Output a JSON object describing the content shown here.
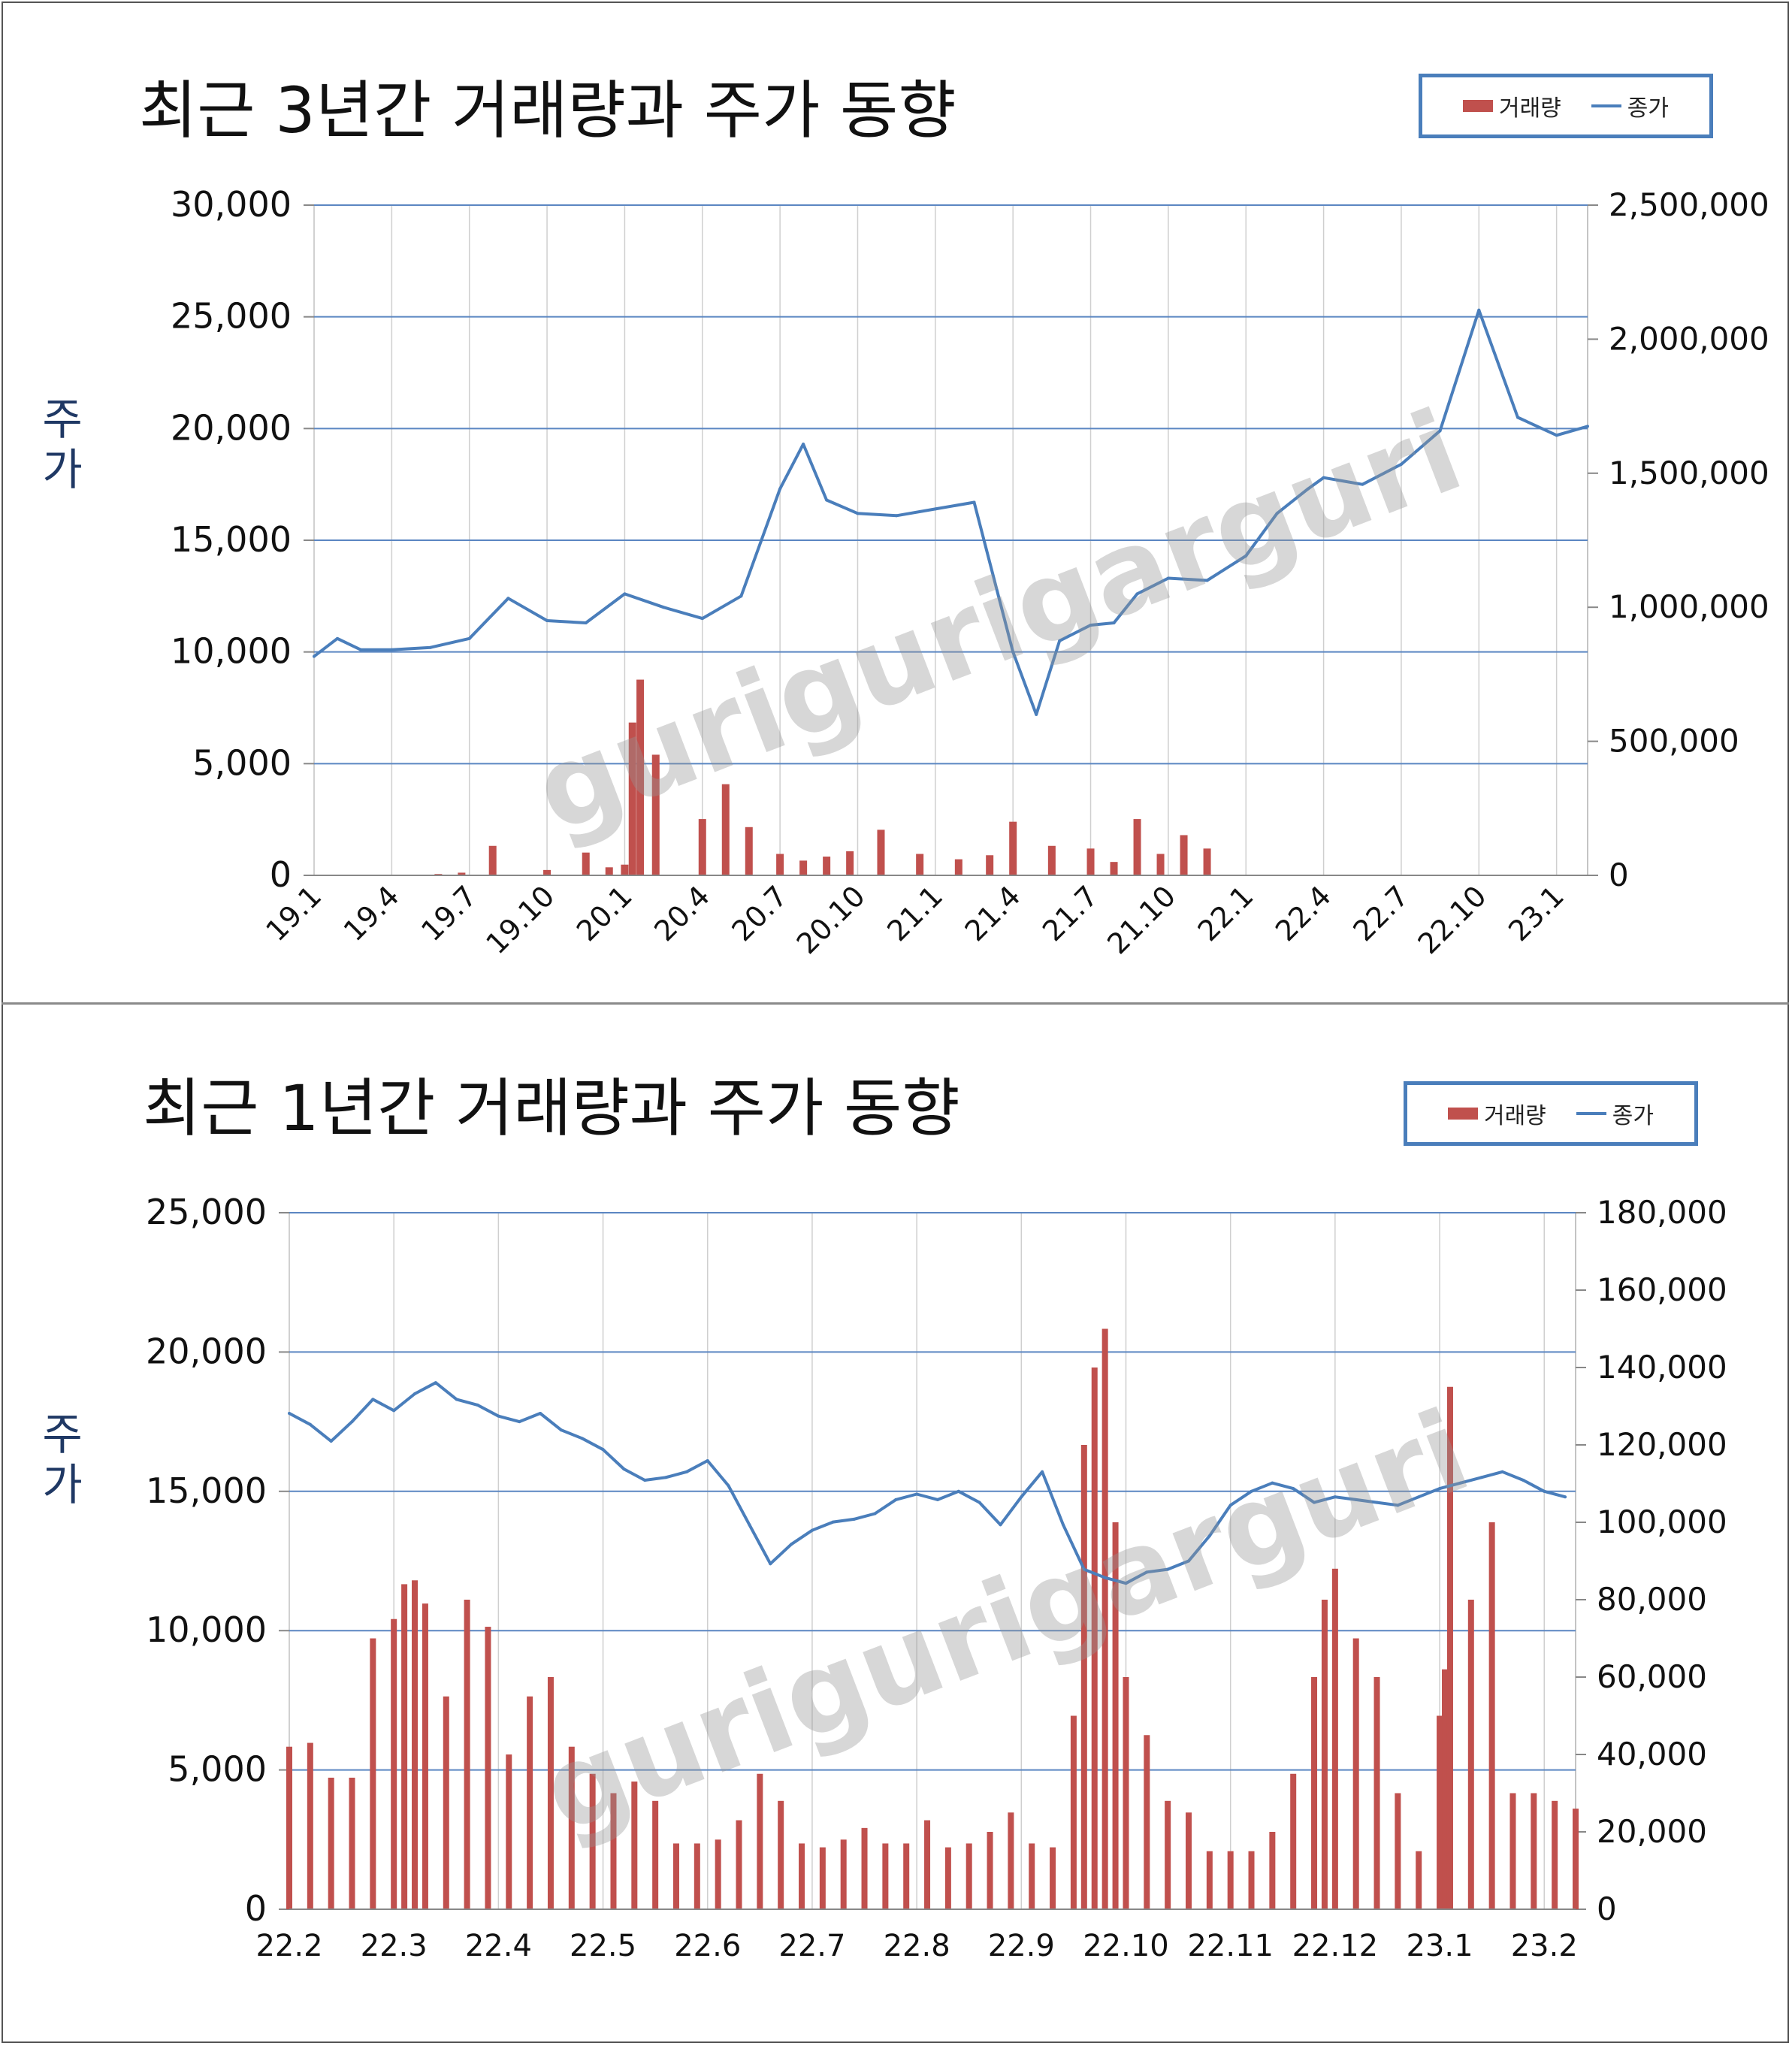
{
  "watermark": "gurigurigarguri",
  "chart_data": [
    {
      "type": "bar+line",
      "title": "최근 3년간 거래량과 주가 동향",
      "ylabel": "주가",
      "legend": [
        "거래량",
        "종가"
      ],
      "legend_position": "top-right",
      "grid": true,
      "colors": {
        "volume": "#c0504d",
        "price": "#4a7ebb"
      },
      "categories": [
        "19.1",
        "19.4",
        "19.7",
        "19.10",
        "20.1",
        "20.4",
        "20.7",
        "20.10",
        "21.1",
        "21.4",
        "21.7",
        "21.10",
        "22.1",
        "22.4",
        "22.7",
        "22.10",
        "23.1"
      ],
      "y_left": {
        "min": 0,
        "max": 30000,
        "ticks": [
          "0",
          "5,000",
          "10,000",
          "15,000",
          "20,000",
          "25,000",
          "30,000"
        ]
      },
      "y_right": {
        "min": 0,
        "max": 2500000,
        "ticks": [
          "0",
          "500,000",
          "1,000,000",
          "1,500,000",
          "2,000,000",
          "2,500,000"
        ]
      },
      "series": [
        {
          "name": "종가",
          "axis": "left",
          "kind": "line",
          "x": [
            0,
            0.3,
            0.6,
            1.0,
            1.5,
            2.0,
            2.5,
            3.0,
            3.5,
            4.0,
            4.5,
            5.0,
            5.5,
            6.0,
            6.3,
            6.6,
            7.0,
            7.5,
            8.0,
            8.5,
            9.0,
            9.3,
            9.6,
            10.0,
            10.3,
            10.6,
            11.0,
            11.5,
            12.0,
            12.4,
            12.8,
            13.0,
            13.5,
            14.0,
            14.5,
            15.0,
            15.5,
            16.0,
            16.4
          ],
          "values": [
            9800,
            10600,
            10100,
            10100,
            10200,
            10600,
            12400,
            11400,
            11300,
            12600,
            12000,
            11500,
            12500,
            17300,
            19300,
            16800,
            16200,
            16100,
            16400,
            16700,
            10000,
            7200,
            10500,
            11200,
            11300,
            12600,
            13300,
            13200,
            14300,
            16200,
            17300,
            17800,
            17500,
            18400,
            19900,
            25300,
            20500,
            19700,
            20100
          ]
        },
        {
          "name": "거래량",
          "axis": "right",
          "kind": "bar",
          "x": [
            0,
            1.0,
            1.6,
            1.9,
            2.3,
            3.0,
            3.5,
            3.8,
            4.0,
            4.1,
            4.2,
            4.4,
            5.0,
            5.3,
            5.6,
            6.0,
            6.3,
            6.6,
            6.9,
            7.3,
            7.8,
            8.3,
            8.7,
            9.0,
            9.5,
            10.0,
            10.3,
            10.6,
            10.9,
            11.2,
            11.5
          ],
          "values": [
            0,
            0,
            5000,
            10000,
            110000,
            20000,
            85000,
            30000,
            40000,
            570000,
            730000,
            450000,
            210000,
            340000,
            180000,
            80000,
            55000,
            70000,
            90000,
            170000,
            80000,
            60000,
            75000,
            200000,
            110000,
            100000,
            50000,
            210000,
            80000,
            150000,
            100000
          ]
        }
      ]
    },
    {
      "type": "bar+line",
      "title": "최근 1년간 거래량과 주가 동향",
      "ylabel": "주가",
      "legend": [
        "거래량",
        "종가"
      ],
      "legend_position": "top-right",
      "grid": true,
      "colors": {
        "volume": "#c0504d",
        "price": "#4a7ebb"
      },
      "categories": [
        "22.2",
        "22.3",
        "22.4",
        "22.5",
        "22.6",
        "22.7",
        "22.8",
        "22.9",
        "22.10",
        "22.11",
        "22.12",
        "23.1",
        "23.2"
      ],
      "y_left": {
        "min": 0,
        "max": 25000,
        "ticks": [
          "0",
          "5,000",
          "10,000",
          "15,000",
          "20,000",
          "25,000"
        ]
      },
      "y_right": {
        "min": 0,
        "max": 180000,
        "ticks": [
          "0",
          "20,000",
          "40,000",
          "60,000",
          "80,000",
          "100,000",
          "120,000",
          "140,000",
          "160,000",
          "180,000"
        ]
      },
      "series": [
        {
          "name": "종가",
          "axis": "left",
          "kind": "line",
          "x": [
            0,
            0.2,
            0.4,
            0.6,
            0.8,
            1.0,
            1.2,
            1.4,
            1.6,
            1.8,
            2.0,
            2.2,
            2.4,
            2.6,
            2.8,
            3.0,
            3.2,
            3.4,
            3.6,
            3.8,
            4.0,
            4.2,
            4.4,
            4.6,
            4.8,
            5.0,
            5.2,
            5.4,
            5.6,
            5.8,
            6.0,
            6.2,
            6.4,
            6.6,
            6.8,
            7.0,
            7.2,
            7.4,
            7.6,
            7.8,
            8.0,
            8.2,
            8.4,
            8.6,
            8.8,
            9.0,
            9.2,
            9.4,
            9.6,
            9.8,
            10.0,
            10.2,
            10.4,
            10.6,
            10.8,
            11.0,
            11.2,
            11.4,
            11.6,
            11.8,
            12.0,
            12.2
          ],
          "values": [
            17800,
            17400,
            16800,
            17500,
            18300,
            17900,
            18500,
            18900,
            18300,
            18100,
            17700,
            17500,
            17800,
            17200,
            16900,
            16500,
            15800,
            15400,
            15500,
            15700,
            16100,
            15200,
            13800,
            12400,
            13100,
            13600,
            13900,
            14000,
            14200,
            14700,
            14900,
            14700,
            15000,
            14600,
            13800,
            14800,
            15700,
            13800,
            12200,
            11900,
            11700,
            12100,
            12200,
            12500,
            13400,
            14500,
            15000,
            15300,
            15100,
            14600,
            14800,
            14700,
            14600,
            14500,
            14800,
            15100,
            15300,
            15500,
            15700,
            15400,
            15000,
            14800
          ]
        },
        {
          "name": "거래량",
          "axis": "right",
          "kind": "bar",
          "x": [
            0,
            0.2,
            0.4,
            0.6,
            0.8,
            1.0,
            1.1,
            1.2,
            1.3,
            1.5,
            1.7,
            1.9,
            2.1,
            2.3,
            2.5,
            2.7,
            2.9,
            3.1,
            3.3,
            3.5,
            3.7,
            3.9,
            4.1,
            4.3,
            4.5,
            4.7,
            4.9,
            5.1,
            5.3,
            5.5,
            5.7,
            5.9,
            6.1,
            6.3,
            6.5,
            6.7,
            6.9,
            7.1,
            7.3,
            7.5,
            7.6,
            7.7,
            7.8,
            7.9,
            8.0,
            8.2,
            8.4,
            8.6,
            8.8,
            9.0,
            9.2,
            9.4,
            9.6,
            9.8,
            9.9,
            10.0,
            10.2,
            10.4,
            10.6,
            10.8,
            11.0,
            11.05,
            11.1,
            11.3,
            11.5,
            11.7,
            11.9,
            12.1,
            12.3
          ],
          "values": [
            42000,
            43000,
            34000,
            34000,
            70000,
            75000,
            84000,
            85000,
            79000,
            55000,
            80000,
            73000,
            40000,
            55000,
            60000,
            42000,
            35000,
            30000,
            33000,
            28000,
            17000,
            17000,
            18000,
            23000,
            35000,
            28000,
            17000,
            16000,
            18000,
            21000,
            17000,
            17000,
            23000,
            16000,
            17000,
            20000,
            25000,
            17000,
            16000,
            50000,
            120000,
            140000,
            150000,
            100000,
            60000,
            45000,
            28000,
            25000,
            15000,
            15000,
            15000,
            20000,
            35000,
            60000,
            80000,
            88000,
            70000,
            60000,
            30000,
            15000,
            50000,
            62000,
            135000,
            80000,
            100000,
            30000,
            30000,
            28000,
            26000
          ]
        }
      ]
    }
  ]
}
